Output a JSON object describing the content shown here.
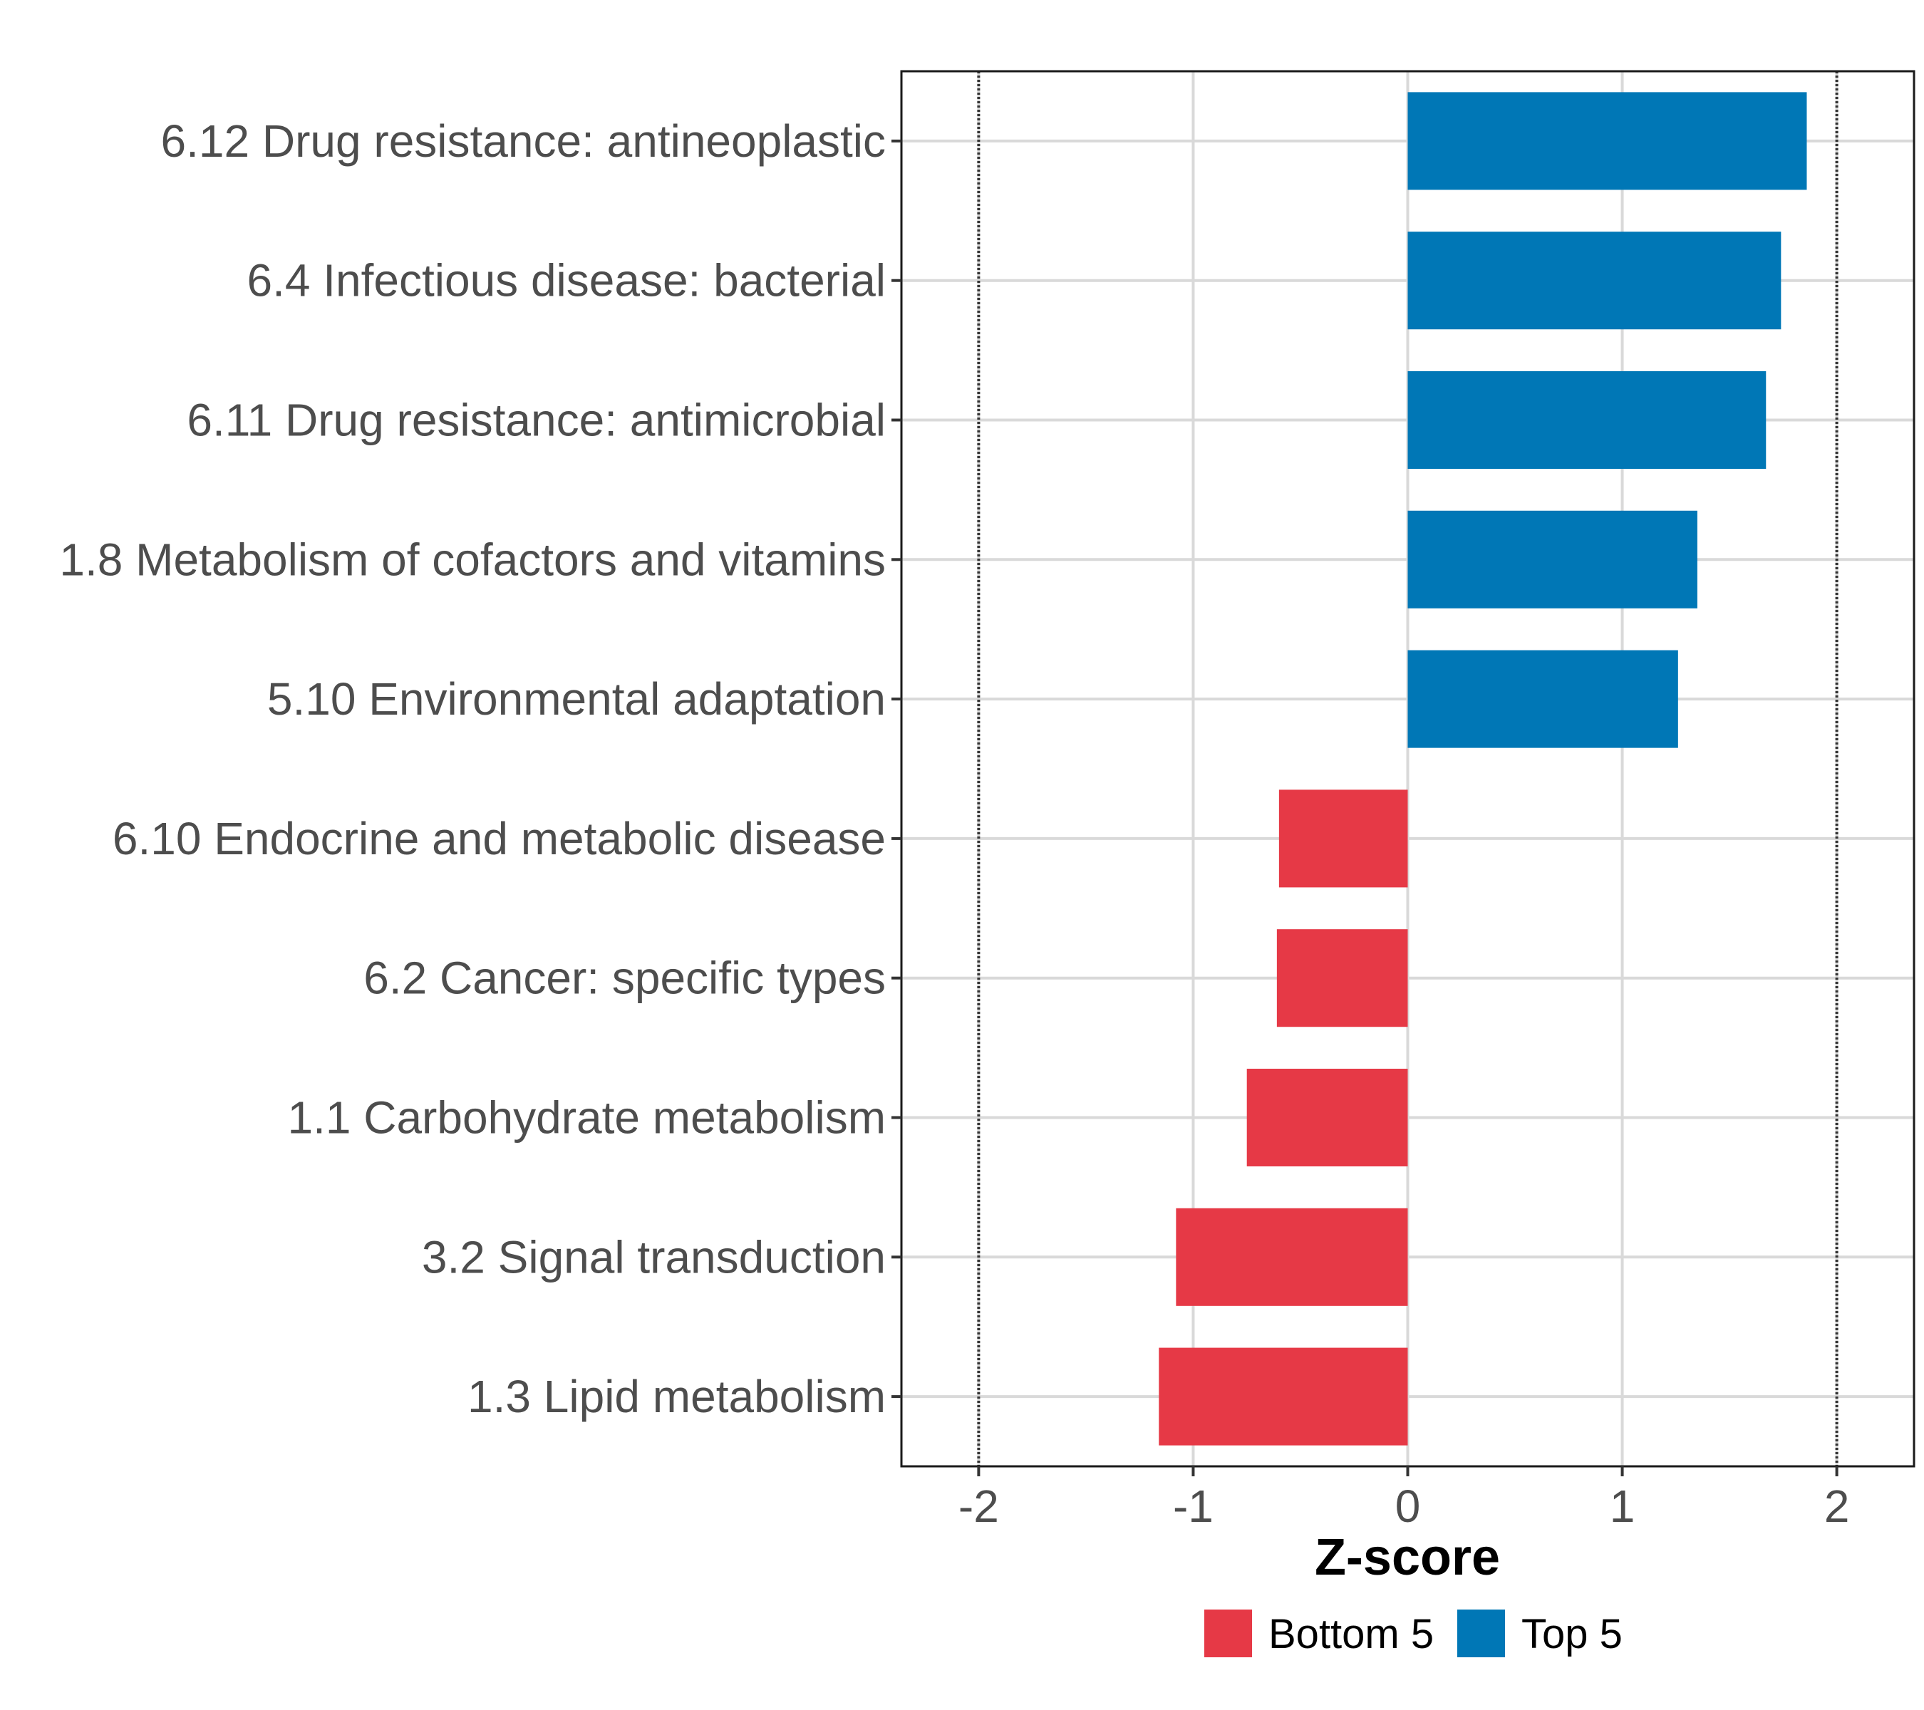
{
  "chart_data": {
    "type": "bar",
    "orientation": "horizontal",
    "categories": [
      "6.12 Drug resistance: antineoplastic",
      "6.4 Infectious disease: bacterial",
      "6.11 Drug resistance: antimicrobial",
      "1.8 Metabolism of cofactors and vitamins",
      "5.10 Environmental adaptation",
      "6.10 Endocrine and metabolic disease",
      "6.2 Cancer: specific types",
      "1.1 Carbohydrate metabolism",
      "3.2 Signal transduction",
      "1.3 Lipid metabolism"
    ],
    "values": [
      1.86,
      1.74,
      1.67,
      1.35,
      1.26,
      -0.6,
      -0.61,
      -0.75,
      -1.08,
      -1.16
    ],
    "groups": [
      "Top 5",
      "Top 5",
      "Top 5",
      "Top 5",
      "Top 5",
      "Bottom 5",
      "Bottom 5",
      "Bottom 5",
      "Bottom 5",
      "Bottom 5"
    ],
    "xlabel": "Z-score",
    "ylabel": "",
    "xlim": [
      -2.36,
      2.36
    ],
    "xticks": [
      -2,
      -1,
      0,
      1,
      2
    ],
    "xtick_labels": [
      "-2",
      "-1",
      "0",
      "1",
      "2"
    ],
    "reference_lines": [
      -2,
      2
    ],
    "grid": true,
    "legend": {
      "position": "bottom",
      "entries": [
        {
          "label": "Bottom 5",
          "color": "#e63946"
        },
        {
          "label": "Top 5",
          "color": "#0077b6"
        }
      ]
    },
    "colors": {
      "Top 5": "#0077b6",
      "Bottom 5": "#e63946"
    }
  }
}
